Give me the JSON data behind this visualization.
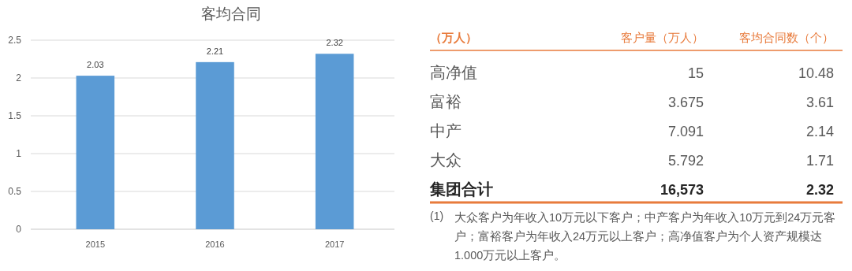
{
  "chart_data": [
    {
      "type": "bar",
      "title": "客均合同",
      "categories": [
        "2015",
        "2016",
        "2017"
      ],
      "values": [
        2.03,
        2.21,
        2.32
      ],
      "color": "#5b9bd5",
      "ylim": [
        0,
        2.5
      ],
      "yticks": [
        0,
        0.5,
        1,
        1.5,
        2,
        2.5
      ],
      "grid": "y",
      "data_labels": true
    },
    {
      "type": "other",
      "annotations": [
        "（万人）",
        "客户量（万人）",
        "客均合同数（个）",
        "高净值",
        "15",
        "10.48",
        "富裕",
        "3.675",
        "3.61",
        "中产",
        "7.091",
        "2.14",
        "大众",
        "5.792",
        "1.71",
        "集团合计",
        "16,573",
        "2.32",
        "(1)",
        "大众客户为年收入10万元以下客户；中产客户为年收入10万元到24万元客户；富裕客户为年收入24万元以上客户；高净值客户为个人资产规模达1.000万元以上客户。"
      ]
    }
  ]
}
